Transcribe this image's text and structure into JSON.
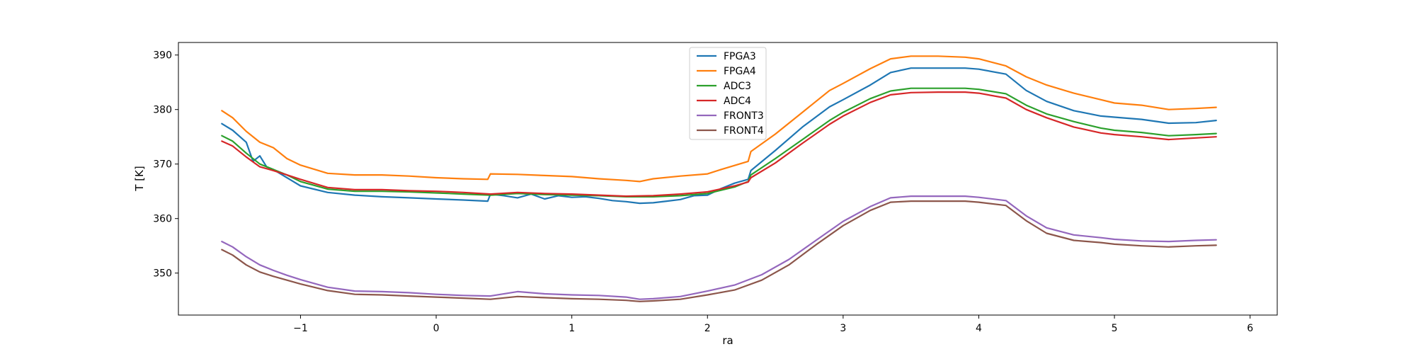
{
  "chart_data": {
    "type": "line",
    "title": "",
    "xlabel": "ra",
    "ylabel": "T [K]",
    "xlim": [
      -1.9,
      6.2
    ],
    "ylim": [
      342.3,
      392.3
    ],
    "xticks": [
      -1,
      0,
      1,
      2,
      3,
      4,
      5,
      6
    ],
    "xtick_labels": [
      "−1",
      "0",
      "1",
      "2",
      "3",
      "4",
      "5",
      "6"
    ],
    "yticks": [
      350,
      360,
      370,
      380,
      390
    ],
    "ytick_labels": [
      "350",
      "360",
      "370",
      "380",
      "390"
    ],
    "grid": false,
    "legend_position": "upper-center",
    "series": [
      {
        "name": "FPGA3",
        "color": "#1f77b4",
        "x": [
          -1.58,
          -1.5,
          -1.4,
          -1.35,
          -1.3,
          -1.25,
          -1.2,
          -1.1,
          -1.0,
          -0.8,
          -0.6,
          -0.4,
          -0.2,
          0.0,
          0.2,
          0.38,
          0.4,
          0.5,
          0.6,
          0.7,
          0.8,
          0.9,
          1.0,
          1.1,
          1.2,
          1.3,
          1.4,
          1.5,
          1.6,
          1.7,
          1.8,
          1.9,
          2.0,
          2.1,
          2.2,
          2.3,
          2.32,
          2.5,
          2.7,
          2.9,
          3.0,
          3.2,
          3.35,
          3.5,
          3.7,
          3.9,
          4.0,
          4.2,
          4.35,
          4.5,
          4.7,
          4.9,
          5.0,
          5.2,
          5.4,
          5.6,
          5.75
        ],
        "values": [
          377.4,
          376.2,
          374.0,
          370.5,
          371.5,
          369.5,
          369.0,
          367.5,
          366.0,
          364.8,
          364.3,
          364.0,
          363.8,
          363.6,
          363.4,
          363.2,
          364.5,
          364.2,
          363.8,
          364.5,
          363.6,
          364.2,
          363.9,
          364.0,
          363.7,
          363.3,
          363.1,
          362.8,
          362.9,
          363.2,
          363.5,
          364.2,
          364.3,
          365.5,
          366.5,
          367.2,
          368.8,
          372.5,
          376.8,
          380.5,
          381.8,
          384.5,
          386.8,
          387.6,
          387.6,
          387.6,
          387.4,
          386.5,
          383.5,
          381.5,
          379.8,
          378.8,
          378.6,
          378.2,
          377.5,
          377.6,
          378.0
        ]
      },
      {
        "name": "FPGA4",
        "color": "#ff7f0e",
        "x": [
          -1.58,
          -1.5,
          -1.4,
          -1.3,
          -1.2,
          -1.1,
          -1.0,
          -0.8,
          -0.6,
          -0.4,
          -0.2,
          0.0,
          0.2,
          0.38,
          0.4,
          0.6,
          0.8,
          1.0,
          1.2,
          1.4,
          1.5,
          1.6,
          1.8,
          2.0,
          2.1,
          2.3,
          2.32,
          2.5,
          2.7,
          2.9,
          3.0,
          3.2,
          3.35,
          3.5,
          3.7,
          3.9,
          4.0,
          4.2,
          4.35,
          4.5,
          4.7,
          4.9,
          5.0,
          5.2,
          5.4,
          5.6,
          5.75
        ],
        "values": [
          379.8,
          378.5,
          376.0,
          374.0,
          373.0,
          371.0,
          369.8,
          368.3,
          368.0,
          368.0,
          367.8,
          367.5,
          367.3,
          367.2,
          368.2,
          368.1,
          367.9,
          367.7,
          367.3,
          367.0,
          366.8,
          367.3,
          367.8,
          368.2,
          369.0,
          370.5,
          372.3,
          375.5,
          379.5,
          383.5,
          384.8,
          387.5,
          389.3,
          389.8,
          389.8,
          389.6,
          389.3,
          388.0,
          386.0,
          384.5,
          383.0,
          381.8,
          381.2,
          380.8,
          380.0,
          380.2,
          380.4
        ]
      },
      {
        "name": "ADC3",
        "color": "#2ca02c",
        "x": [
          -1.58,
          -1.5,
          -1.4,
          -1.3,
          -1.2,
          -1.1,
          -1.0,
          -0.8,
          -0.6,
          -0.4,
          -0.2,
          0.0,
          0.2,
          0.4,
          0.6,
          0.8,
          1.0,
          1.2,
          1.4,
          1.6,
          1.8,
          2.0,
          2.2,
          2.3,
          2.32,
          2.5,
          2.7,
          2.9,
          3.0,
          3.2,
          3.35,
          3.5,
          3.7,
          3.9,
          4.0,
          4.2,
          4.35,
          4.5,
          4.7,
          4.9,
          5.0,
          5.2,
          5.4,
          5.6,
          5.75
        ],
        "values": [
          375.2,
          374.2,
          372.0,
          370.0,
          369.0,
          368.0,
          366.8,
          365.4,
          365.0,
          365.0,
          364.9,
          364.7,
          364.5,
          364.3,
          364.6,
          364.4,
          364.3,
          364.2,
          364.0,
          364.0,
          364.2,
          364.6,
          365.8,
          366.8,
          368.0,
          371.0,
          374.5,
          378.0,
          379.5,
          382.0,
          383.4,
          383.9,
          383.9,
          383.9,
          383.7,
          382.9,
          380.8,
          379.2,
          377.8,
          376.6,
          376.2,
          375.8,
          375.2,
          375.4,
          375.6
        ]
      },
      {
        "name": "ADC4",
        "color": "#d62728",
        "x": [
          -1.58,
          -1.5,
          -1.4,
          -1.3,
          -1.2,
          -1.1,
          -1.0,
          -0.8,
          -0.6,
          -0.4,
          -0.2,
          0.0,
          0.2,
          0.4,
          0.6,
          0.8,
          1.0,
          1.2,
          1.4,
          1.6,
          1.8,
          2.0,
          2.2,
          2.3,
          2.32,
          2.5,
          2.7,
          2.9,
          3.0,
          3.2,
          3.35,
          3.5,
          3.7,
          3.9,
          4.0,
          4.2,
          4.35,
          4.5,
          4.7,
          4.9,
          5.0,
          5.2,
          5.4,
          5.6,
          5.75
        ],
        "values": [
          374.2,
          373.3,
          371.3,
          369.5,
          368.8,
          368.0,
          367.2,
          365.7,
          365.3,
          365.3,
          365.1,
          365.0,
          364.8,
          364.5,
          364.8,
          364.6,
          364.5,
          364.3,
          364.1,
          364.2,
          364.5,
          364.9,
          366.0,
          366.7,
          367.5,
          370.2,
          373.8,
          377.3,
          378.8,
          381.3,
          382.7,
          383.1,
          383.2,
          383.2,
          383.0,
          382.1,
          380.0,
          378.5,
          376.8,
          375.7,
          375.4,
          375.0,
          374.5,
          374.8,
          375.0
        ]
      },
      {
        "name": "FRONT3",
        "color": "#9467bd",
        "x": [
          -1.58,
          -1.5,
          -1.4,
          -1.3,
          -1.2,
          -1.1,
          -1.0,
          -0.8,
          -0.6,
          -0.4,
          -0.2,
          0.0,
          0.2,
          0.4,
          0.6,
          0.8,
          1.0,
          1.2,
          1.4,
          1.5,
          1.6,
          1.8,
          2.0,
          2.2,
          2.4,
          2.6,
          2.8,
          3.0,
          3.2,
          3.35,
          3.5,
          3.7,
          3.9,
          4.0,
          4.2,
          4.35,
          4.5,
          4.7,
          4.9,
          5.0,
          5.2,
          5.4,
          5.6,
          5.75
        ],
        "values": [
          355.8,
          354.8,
          353.0,
          351.5,
          350.5,
          349.6,
          348.8,
          347.4,
          346.7,
          346.6,
          346.4,
          346.1,
          345.9,
          345.8,
          346.6,
          346.2,
          346.0,
          345.9,
          345.6,
          345.2,
          345.3,
          345.7,
          346.7,
          347.8,
          349.7,
          352.5,
          356.0,
          359.5,
          362.2,
          363.8,
          364.1,
          364.1,
          364.1,
          363.9,
          363.3,
          360.5,
          358.3,
          357.0,
          356.5,
          356.2,
          355.9,
          355.8,
          356.0,
          356.1
        ]
      },
      {
        "name": "FRONT4",
        "color": "#8c564b",
        "x": [
          -1.58,
          -1.5,
          -1.4,
          -1.3,
          -1.2,
          -1.1,
          -1.0,
          -0.8,
          -0.6,
          -0.4,
          -0.2,
          0.0,
          0.2,
          0.4,
          0.6,
          0.8,
          1.0,
          1.2,
          1.4,
          1.5,
          1.6,
          1.8,
          2.0,
          2.2,
          2.4,
          2.6,
          2.8,
          3.0,
          3.2,
          3.35,
          3.5,
          3.7,
          3.9,
          4.0,
          4.2,
          4.35,
          4.5,
          4.7,
          4.9,
          5.0,
          5.2,
          5.4,
          5.6,
          5.75
        ],
        "values": [
          354.3,
          353.3,
          351.5,
          350.2,
          349.4,
          348.7,
          348.0,
          346.8,
          346.1,
          346.0,
          345.8,
          345.6,
          345.4,
          345.2,
          345.7,
          345.5,
          345.3,
          345.2,
          345.0,
          344.8,
          344.9,
          345.2,
          346.0,
          346.9,
          348.7,
          351.5,
          355.2,
          358.7,
          361.5,
          363.0,
          363.2,
          363.2,
          363.2,
          363.0,
          362.4,
          359.6,
          357.3,
          356.0,
          355.6,
          355.3,
          355.0,
          354.8,
          355.0,
          355.1
        ]
      }
    ]
  }
}
